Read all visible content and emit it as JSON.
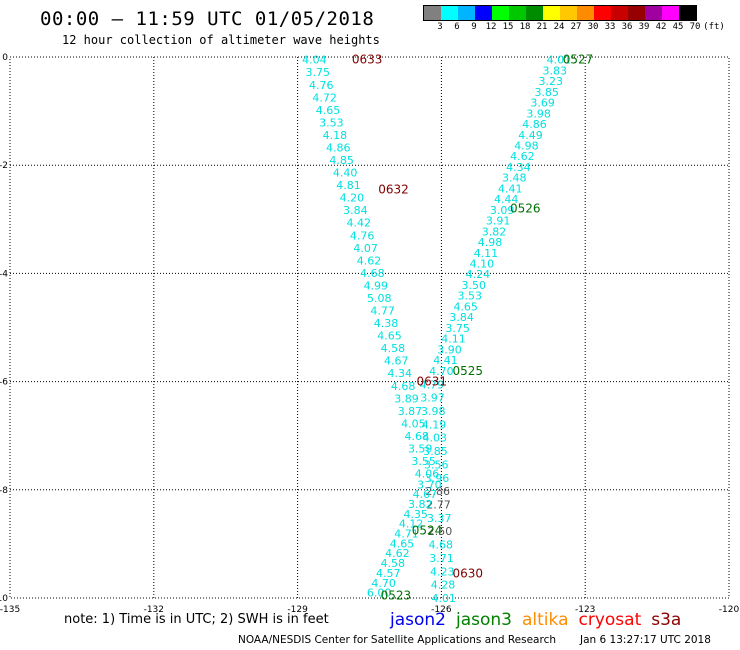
{
  "header": {
    "title": "00:00 – 11:59 UTC 01/05/2018",
    "subtitle": "12 hour collection of altimeter wave heights"
  },
  "legend": {
    "colors": [
      "#808080",
      "#00ffff",
      "#00b4ff",
      "#0000ff",
      "#00ff00",
      "#00c800",
      "#008c00",
      "#ffff00",
      "#ffc800",
      "#ff8c00",
      "#ff0000",
      "#c80000",
      "#960000",
      "#a000a0",
      "#ff00ff",
      "#000000"
    ],
    "labels": [
      "3",
      "6",
      "9",
      "12",
      "15",
      "18",
      "21",
      "24",
      "27",
      "30",
      "33",
      "36",
      "39",
      "42",
      "45",
      "70",
      "(ft)"
    ]
  },
  "footer": {
    "note": "note: 1) Time is in UTC; 2) SWH is in feet",
    "satellites": [
      {
        "name": "jason2",
        "color": "#0000ee"
      },
      {
        "name": "jason3",
        "color": "#008000"
      },
      {
        "name": "altika",
        "color": "#ff8c00"
      },
      {
        "name": "cryosat",
        "color": "#ff0000"
      },
      {
        "name": "s3a",
        "color": "#8b0000"
      }
    ],
    "credit": "NOAA/NESDIS Center for Satellite Applications and Research",
    "timestamp": "Jan  6 13:27:17 UTC 2018"
  },
  "chart_data": {
    "type": "scatter",
    "xlim": [
      -135,
      -120
    ],
    "ylim": [
      -10,
      0
    ],
    "x_ticks": [
      "-135",
      "-132",
      "-129",
      "-126",
      "-123",
      "-120"
    ],
    "y_ticks": [
      "0",
      "-2",
      "-4",
      "-6",
      "-8",
      "-10"
    ],
    "grid": true,
    "colors": {
      "value": "#00e0e0",
      "value_gray": "#555555",
      "time_dark": "#800000",
      "time_green": "#007000",
      "grid": "#000000"
    },
    "series": [
      {
        "track": "descending",
        "start": [
          -128.65,
          -0.05
        ],
        "end": [
          -126.3,
          -7.7
        ],
        "values": [
          "4.04",
          "3.75",
          "4.76",
          "4.72",
          "4.65",
          "3.53",
          "4.18",
          "4.86",
          "4.85",
          "4.40",
          "4.81",
          "4.20",
          "3.84",
          "4.42",
          "4.76",
          "4.07",
          "4.62",
          "4.68",
          "4.99",
          "5.08",
          "4.77",
          "4.38",
          "4.65",
          "4.58",
          "4.67",
          "4.34",
          "4.68",
          "3.89",
          "3.87",
          "4.05",
          "4.68",
          "3.59",
          "3.55",
          "4.06"
        ]
      },
      {
        "track": "descending-lower",
        "start": [
          -126.2,
          -6.05
        ],
        "end": [
          -125.95,
          -10.0
        ],
        "values": [
          "4.79",
          "3.97",
          "3.98",
          "4.19",
          "4.03",
          "3.85",
          "3.56",
          "3.96",
          "2.86",
          "2.77",
          "3.37",
          "2.50",
          "4.68",
          "3.71",
          "4.23",
          "4.28",
          "4.01"
        ]
      },
      {
        "track": "ascending",
        "start": [
          -123.55,
          -0.05
        ],
        "end": [
          -126.0,
          -5.8
        ],
        "values": [
          "4.01",
          "3.83",
          "3.23",
          "3.85",
          "3.69",
          "3.98",
          "4.86",
          "4.49",
          "4.98",
          "4.62",
          "4.34",
          "3.48",
          "4.41",
          "4.44",
          "3.09",
          "3.91",
          "3.82",
          "4.98",
          "4.11",
          "4.10",
          "4.24",
          "3.50",
          "3.53",
          "4.65",
          "3.84",
          "3.75",
          "4.11",
          "3.90",
          "4.41",
          "4.70"
        ]
      },
      {
        "track": "ascending-lower",
        "start": [
          -126.25,
          -7.9
        ],
        "end": [
          -127.3,
          -9.9
        ],
        "values": [
          "3.70",
          "4.67",
          "3.82",
          "4.35",
          "4.12",
          "4.71",
          "4.65",
          "4.62",
          "4.58",
          "4.57",
          "4.70",
          "6.00"
        ]
      }
    ],
    "time_labels": [
      {
        "text": "0633",
        "x": -127.55,
        "y": -0.05,
        "color": "dark"
      },
      {
        "text": "0632",
        "x": -127.0,
        "y": -2.45,
        "color": "dark"
      },
      {
        "text": "0631",
        "x": -126.2,
        "y": -6.0,
        "color": "dark"
      },
      {
        "text": "0630",
        "x": -125.45,
        "y": -9.55,
        "color": "dark"
      },
      {
        "text": "0527",
        "x": -123.15,
        "y": -0.05,
        "color": "green"
      },
      {
        "text": "0526",
        "x": -124.25,
        "y": -2.8,
        "color": "green"
      },
      {
        "text": "0525",
        "x": -125.45,
        "y": -5.8,
        "color": "green"
      },
      {
        "text": "0524",
        "x": -126.3,
        "y": -8.75,
        "color": "green"
      },
      {
        "text": "0523",
        "x": -126.95,
        "y": -9.95,
        "color": "green"
      }
    ]
  }
}
